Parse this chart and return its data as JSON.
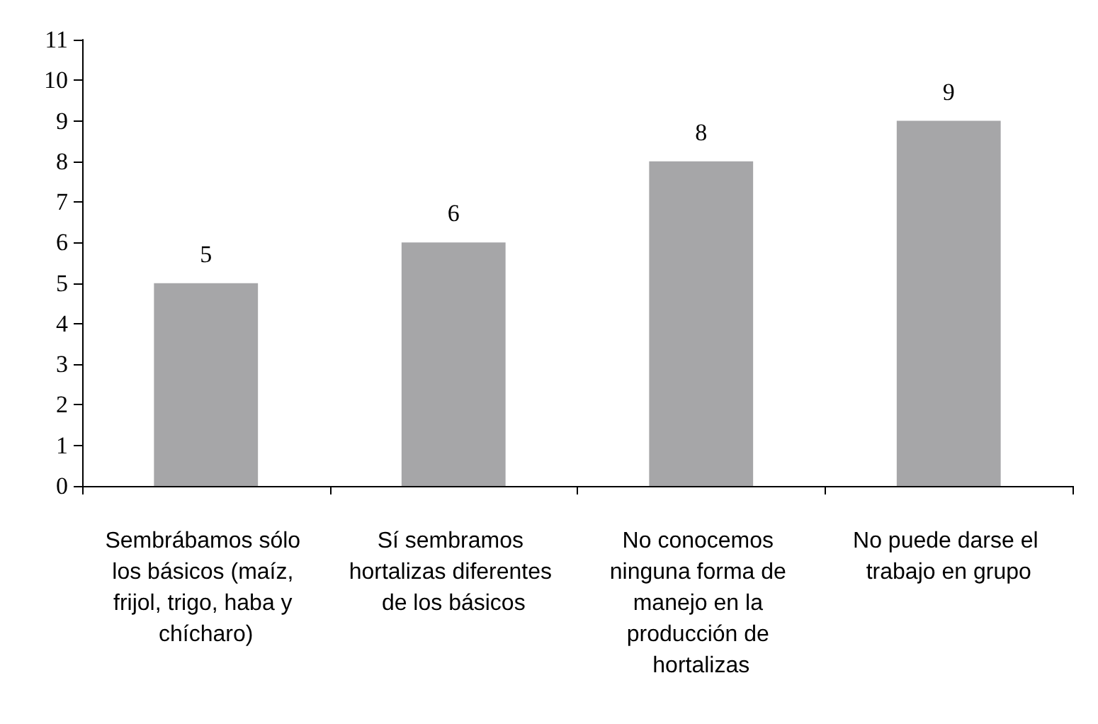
{
  "chart_data": {
    "type": "bar",
    "categories": [
      "Sembrábamos sólo los básicos (maíz, frijol, trigo, haba y chícharo)",
      "Sí sembramos hortalizas diferentes de los básicos",
      "No conocemos ninguna forma de manejo en la producción de hortalizas",
      "No puede darse el trabajo en grupo"
    ],
    "values": [
      5,
      6,
      8,
      9
    ],
    "color": "#a6a6a8",
    "ylim": [
      0,
      11
    ],
    "yticks": [
      0,
      1,
      2,
      3,
      4,
      5,
      6,
      7,
      8,
      9,
      10,
      11
    ],
    "grid": false,
    "data_labels": true
  }
}
